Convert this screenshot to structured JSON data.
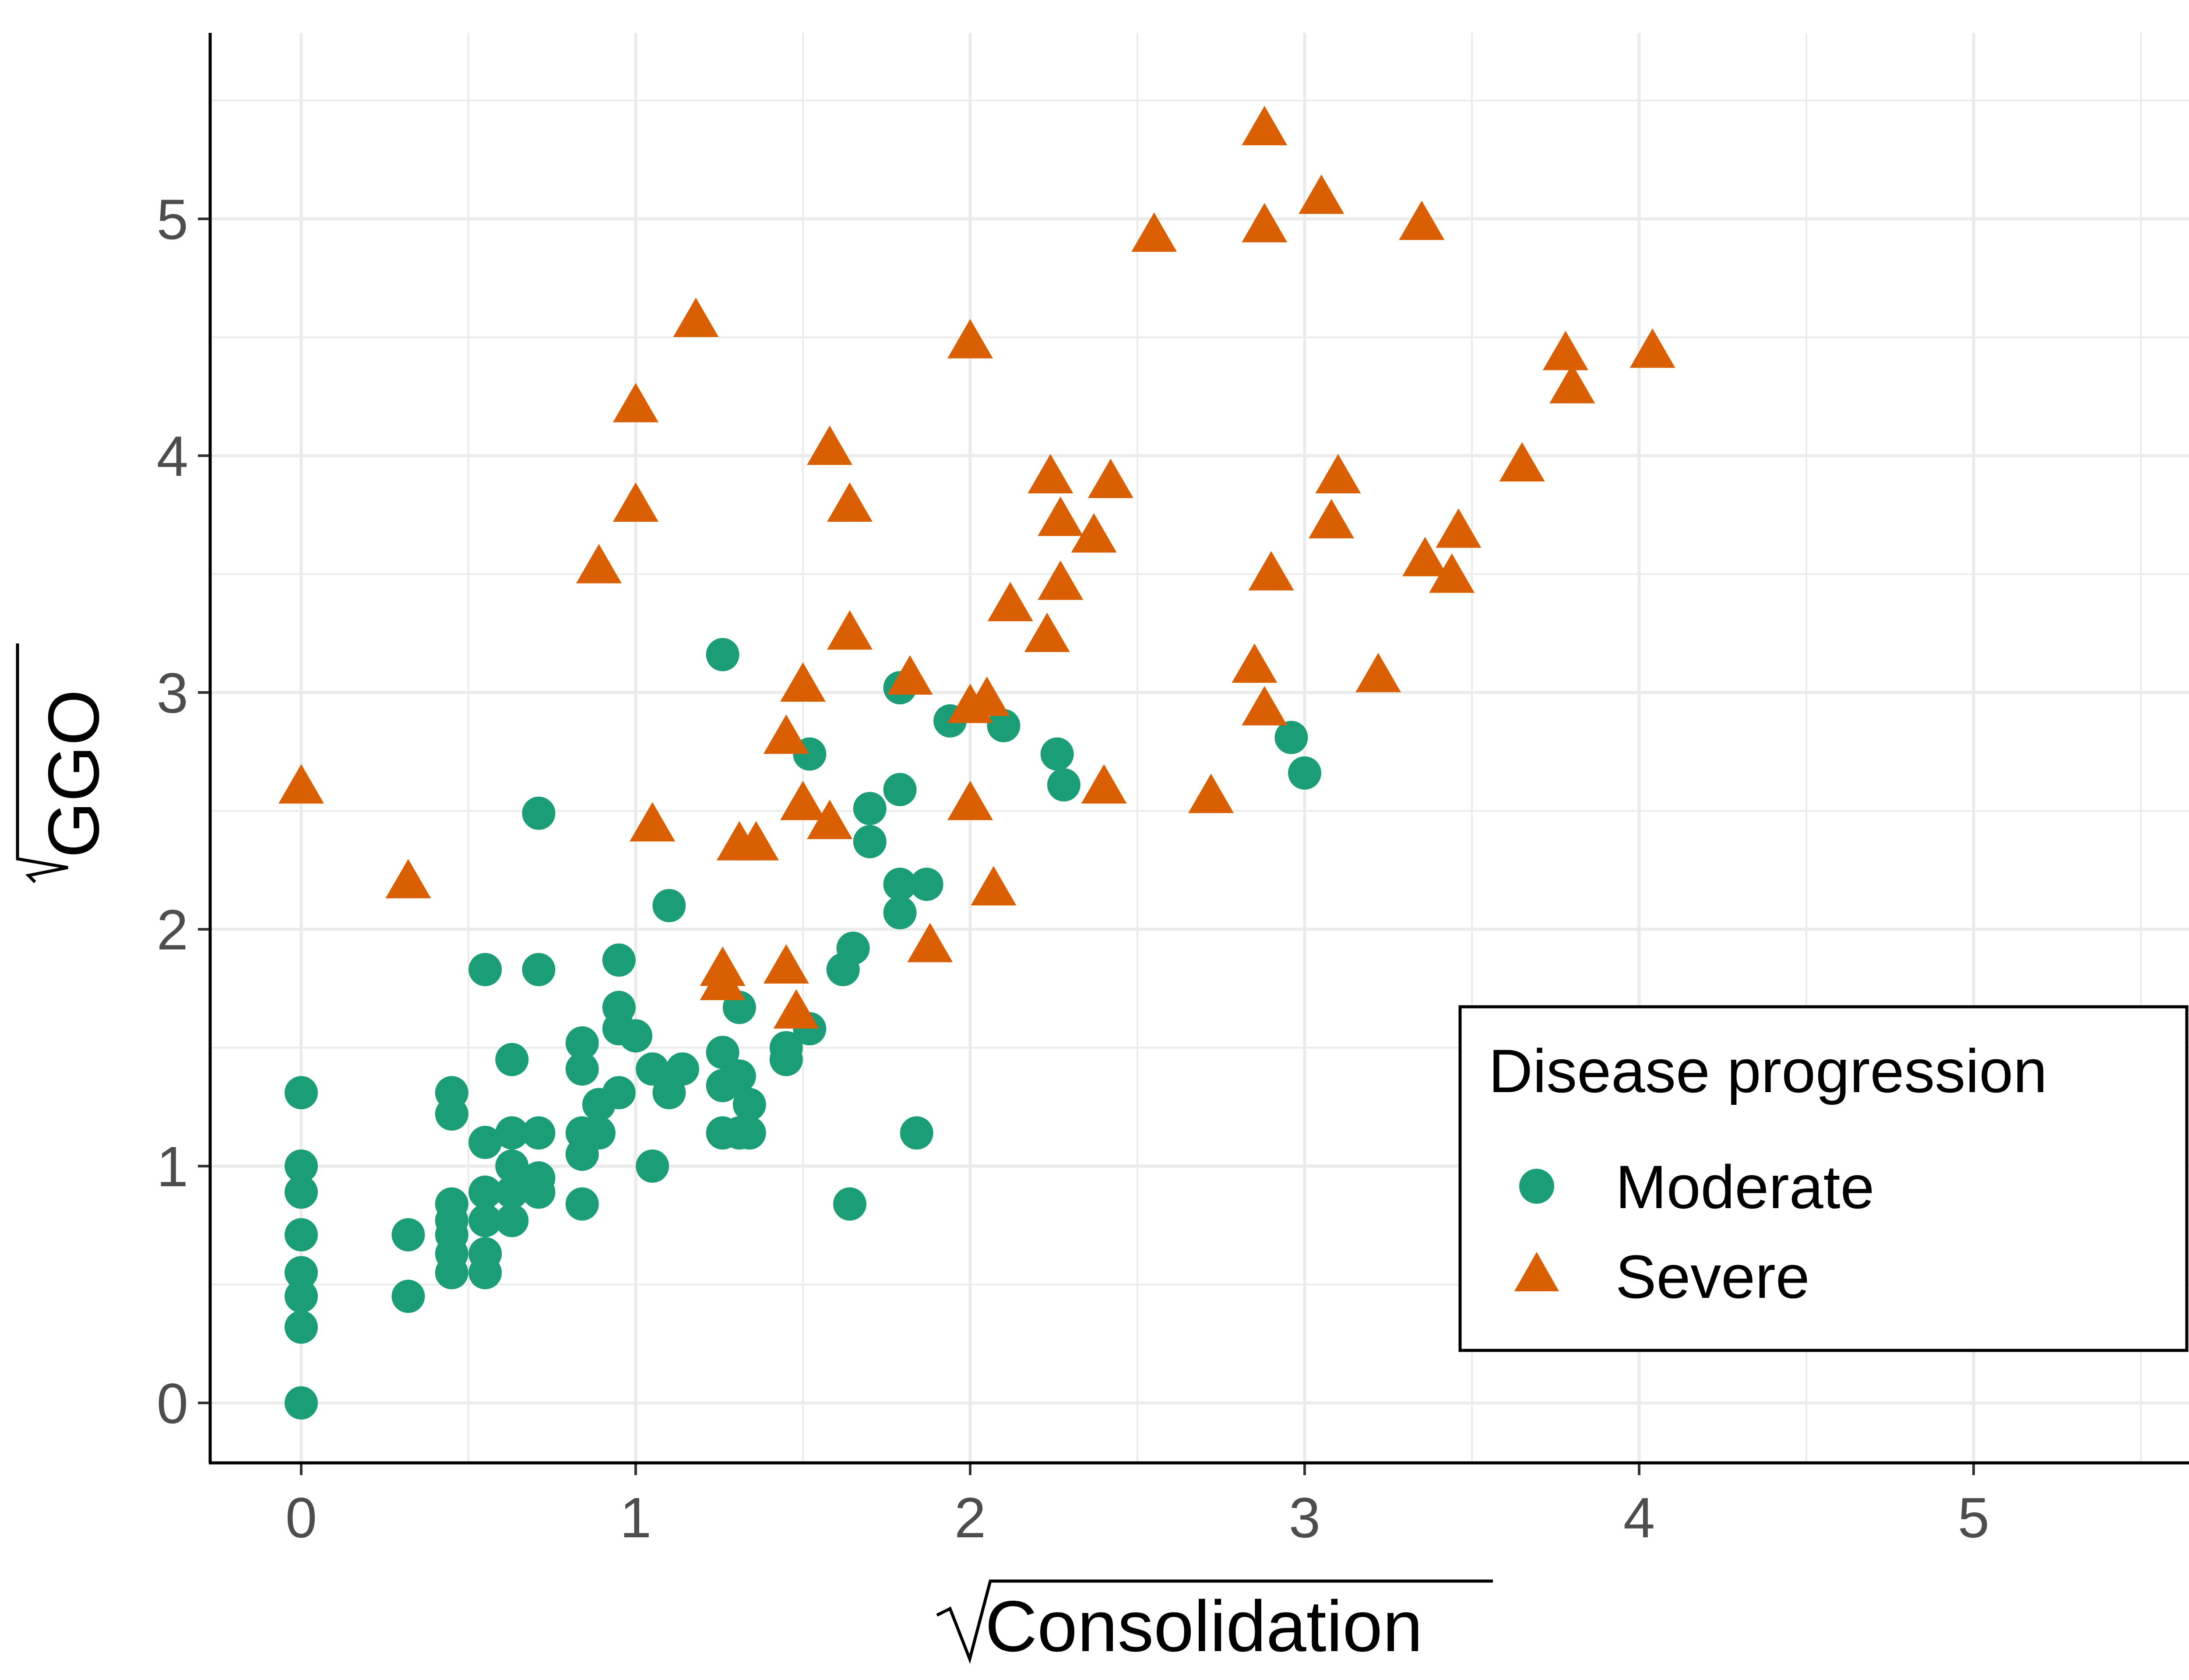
{
  "chart_data": {
    "type": "scatter",
    "title": "",
    "xlabel": "Consolidation",
    "ylabel": "GGO",
    "axis_transform": "sqrt",
    "xlim": [
      -0.27,
      5.8
    ],
    "ylim": [
      -0.27,
      5.65
    ],
    "x_ticks": [
      "0",
      "1",
      "2",
      "3",
      "4",
      "5"
    ],
    "y_ticks": [
      "0",
      "1",
      "2",
      "3",
      "4",
      "5"
    ],
    "grid": true,
    "legend": {
      "title": "Disease progression",
      "position": "bottom-right"
    },
    "colors": {
      "moderate": "#1b9e77",
      "severe": "#d95f02",
      "grid": "#ebebeb",
      "axis": "#000000"
    },
    "series": [
      {
        "name": "Moderate",
        "marker": "circle",
        "color": "#1b9e77",
        "points": [
          [
            0,
            0
          ],
          [
            0,
            0.32
          ],
          [
            0,
            0.45
          ],
          [
            0,
            0.55
          ],
          [
            0,
            0.71
          ],
          [
            0,
            0.89
          ],
          [
            0,
            1.0
          ],
          [
            0,
            1.31
          ],
          [
            0.32,
            0.45
          ],
          [
            0.32,
            0.71
          ],
          [
            0.45,
            0.55
          ],
          [
            0.45,
            0.63
          ],
          [
            0.45,
            0.71
          ],
          [
            0.45,
            0.77
          ],
          [
            0.45,
            0.84
          ],
          [
            0.45,
            1.22
          ],
          [
            0.45,
            1.31
          ],
          [
            0.55,
            0.55
          ],
          [
            0.55,
            0.63
          ],
          [
            0.55,
            0.77
          ],
          [
            0.55,
            0.89
          ],
          [
            0.55,
            1.1
          ],
          [
            0.55,
            1.83
          ],
          [
            0.63,
            0.77
          ],
          [
            0.63,
            0.89
          ],
          [
            0.63,
            1.0
          ],
          [
            0.63,
            1.14
          ],
          [
            0.63,
            1.45
          ],
          [
            0.71,
            0.89
          ],
          [
            0.71,
            0.95
          ],
          [
            0.71,
            1.14
          ],
          [
            0.71,
            1.83
          ],
          [
            0.71,
            2.49
          ],
          [
            0.84,
            0.84
          ],
          [
            0.84,
            1.05
          ],
          [
            0.84,
            1.14
          ],
          [
            0.84,
            1.41
          ],
          [
            0.84,
            1.52
          ],
          [
            0.89,
            1.14
          ],
          [
            0.89,
            1.26
          ],
          [
            0.95,
            1.31
          ],
          [
            0.95,
            1.58
          ],
          [
            0.95,
            1.67
          ],
          [
            0.95,
            1.87
          ],
          [
            1.0,
            1.55
          ],
          [
            1.05,
            1.0
          ],
          [
            1.05,
            1.41
          ],
          [
            1.1,
            1.31
          ],
          [
            1.1,
            2.1
          ],
          [
            1.14,
            1.41
          ],
          [
            1.26,
            1.14
          ],
          [
            1.26,
            1.34
          ],
          [
            1.26,
            1.48
          ],
          [
            1.26,
            3.16
          ],
          [
            1.31,
            1.14
          ],
          [
            1.31,
            1.38
          ],
          [
            1.31,
            1.67
          ],
          [
            1.34,
            1.14
          ],
          [
            1.34,
            1.26
          ],
          [
            1.45,
            1.45
          ],
          [
            1.45,
            1.5
          ],
          [
            1.52,
            1.58
          ],
          [
            1.52,
            2.74
          ],
          [
            1.64,
            0.84
          ],
          [
            1.62,
            1.83
          ],
          [
            1.65,
            1.92
          ],
          [
            1.7,
            2.37
          ],
          [
            1.7,
            2.51
          ],
          [
            1.79,
            2.07
          ],
          [
            1.79,
            2.19
          ],
          [
            1.79,
            2.59
          ],
          [
            1.79,
            3.02
          ],
          [
            1.87,
            2.19
          ],
          [
            1.84,
            1.14
          ],
          [
            1.94,
            2.88
          ],
          [
            2.1,
            2.86
          ],
          [
            2.26,
            2.74
          ],
          [
            2.28,
            2.61
          ],
          [
            2.96,
            2.81
          ],
          [
            3.0,
            2.66
          ]
        ]
      },
      {
        "name": "Severe",
        "marker": "triangle",
        "color": "#d95f02",
        "points": [
          [
            0,
            2.59
          ],
          [
            0.32,
            2.19
          ],
          [
            0.89,
            3.52
          ],
          [
            1.0,
            3.78
          ],
          [
            1.0,
            4.2
          ],
          [
            1.05,
            2.43
          ],
          [
            1.18,
            4.56
          ],
          [
            1.26,
            1.76
          ],
          [
            1.26,
            1.82
          ],
          [
            1.31,
            2.35
          ],
          [
            1.36,
            2.35
          ],
          [
            1.45,
            1.83
          ],
          [
            1.45,
            2.8
          ],
          [
            1.48,
            1.64
          ],
          [
            1.5,
            2.52
          ],
          [
            1.5,
            3.02
          ],
          [
            1.58,
            2.44
          ],
          [
            1.58,
            4.02
          ],
          [
            1.64,
            3.24
          ],
          [
            1.64,
            3.78
          ],
          [
            1.82,
            3.05
          ],
          [
            1.88,
            1.92
          ],
          [
            2.0,
            2.52
          ],
          [
            2.0,
            2.93
          ],
          [
            2.0,
            4.47
          ],
          [
            2.05,
            2.96
          ],
          [
            2.07,
            2.16
          ],
          [
            2.12,
            3.36
          ],
          [
            2.23,
            3.23
          ],
          [
            2.24,
            3.9
          ],
          [
            2.27,
            3.45
          ],
          [
            2.27,
            3.72
          ],
          [
            2.37,
            3.65
          ],
          [
            2.4,
            2.59
          ],
          [
            2.42,
            3.88
          ],
          [
            2.55,
            4.92
          ],
          [
            2.72,
            2.55
          ],
          [
            2.85,
            3.1
          ],
          [
            2.88,
            2.92
          ],
          [
            2.88,
            4.96
          ],
          [
            2.88,
            5.37
          ],
          [
            2.9,
            3.49
          ],
          [
            3.05,
            5.08
          ],
          [
            3.08,
            3.71
          ],
          [
            3.1,
            3.9
          ],
          [
            3.22,
            3.06
          ],
          [
            3.35,
            4.97
          ],
          [
            3.36,
            3.55
          ],
          [
            3.44,
            3.48
          ],
          [
            3.46,
            3.67
          ],
          [
            3.65,
            3.95
          ],
          [
            3.78,
            4.42
          ],
          [
            3.8,
            4.28
          ],
          [
            4.04,
            4.43
          ]
        ]
      }
    ]
  }
}
